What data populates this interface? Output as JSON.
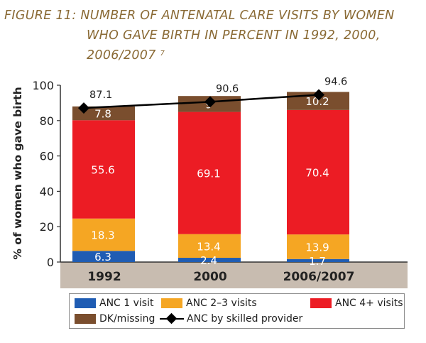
{
  "title": {
    "line1": "FIGURE 11: NUMBER OF ANTENATAL CARE VISITS  BY WOMEN",
    "line2": "WHO GAVE BIRTH IN PERCENT IN 1992, 2000,",
    "line3": "2006/2007",
    "footnote": "7"
  },
  "colors": {
    "anc1": "#1f5cb3",
    "anc23": "#f5a623",
    "anc4": "#ec1c24",
    "dk": "#7a4e2e",
    "skilled": "#000000",
    "axis_band": "#c8bcb0",
    "title": "#8a6a35"
  },
  "chart_data": {
    "type": "bar",
    "stacked": true,
    "ylabel": "% of women who gave birth",
    "ylim": [
      0,
      100
    ],
    "yticks": [
      "0",
      "20",
      "40",
      "60",
      "80",
      "100"
    ],
    "categories": [
      "1992",
      "2000",
      "2006/2007"
    ],
    "series": [
      {
        "name": "ANC 1 visit",
        "values": [
          6.3,
          2.4,
          1.7
        ],
        "labels": [
          "6.3",
          "2.4",
          "1.7"
        ]
      },
      {
        "name": "ANC 2-3 visits",
        "values": [
          18.3,
          13.4,
          13.9
        ],
        "labels": [
          "18.3",
          "13.4",
          "13.9"
        ]
      },
      {
        "name": "ANC 4+ visits",
        "values": [
          55.6,
          69.1,
          70.4
        ],
        "labels": [
          "55.6",
          "69.1",
          "70.4"
        ]
      },
      {
        "name": "DK/missing",
        "values": [
          7.8,
          9,
          10.2
        ],
        "labels": [
          "7.8",
          "9",
          "10.2"
        ]
      }
    ],
    "line": {
      "name": "ANC by skilled provider",
      "values": [
        87.1,
        90.6,
        94.6
      ],
      "labels": [
        "87.1",
        "90.6",
        "94.6"
      ]
    },
    "legend": [
      "ANC 1 visit",
      "ANC 2–3 visits",
      "ANC 4+ visits",
      "DK/missing",
      "ANC by skilled provider"
    ],
    "legend_position": "bottom",
    "grid": false
  }
}
